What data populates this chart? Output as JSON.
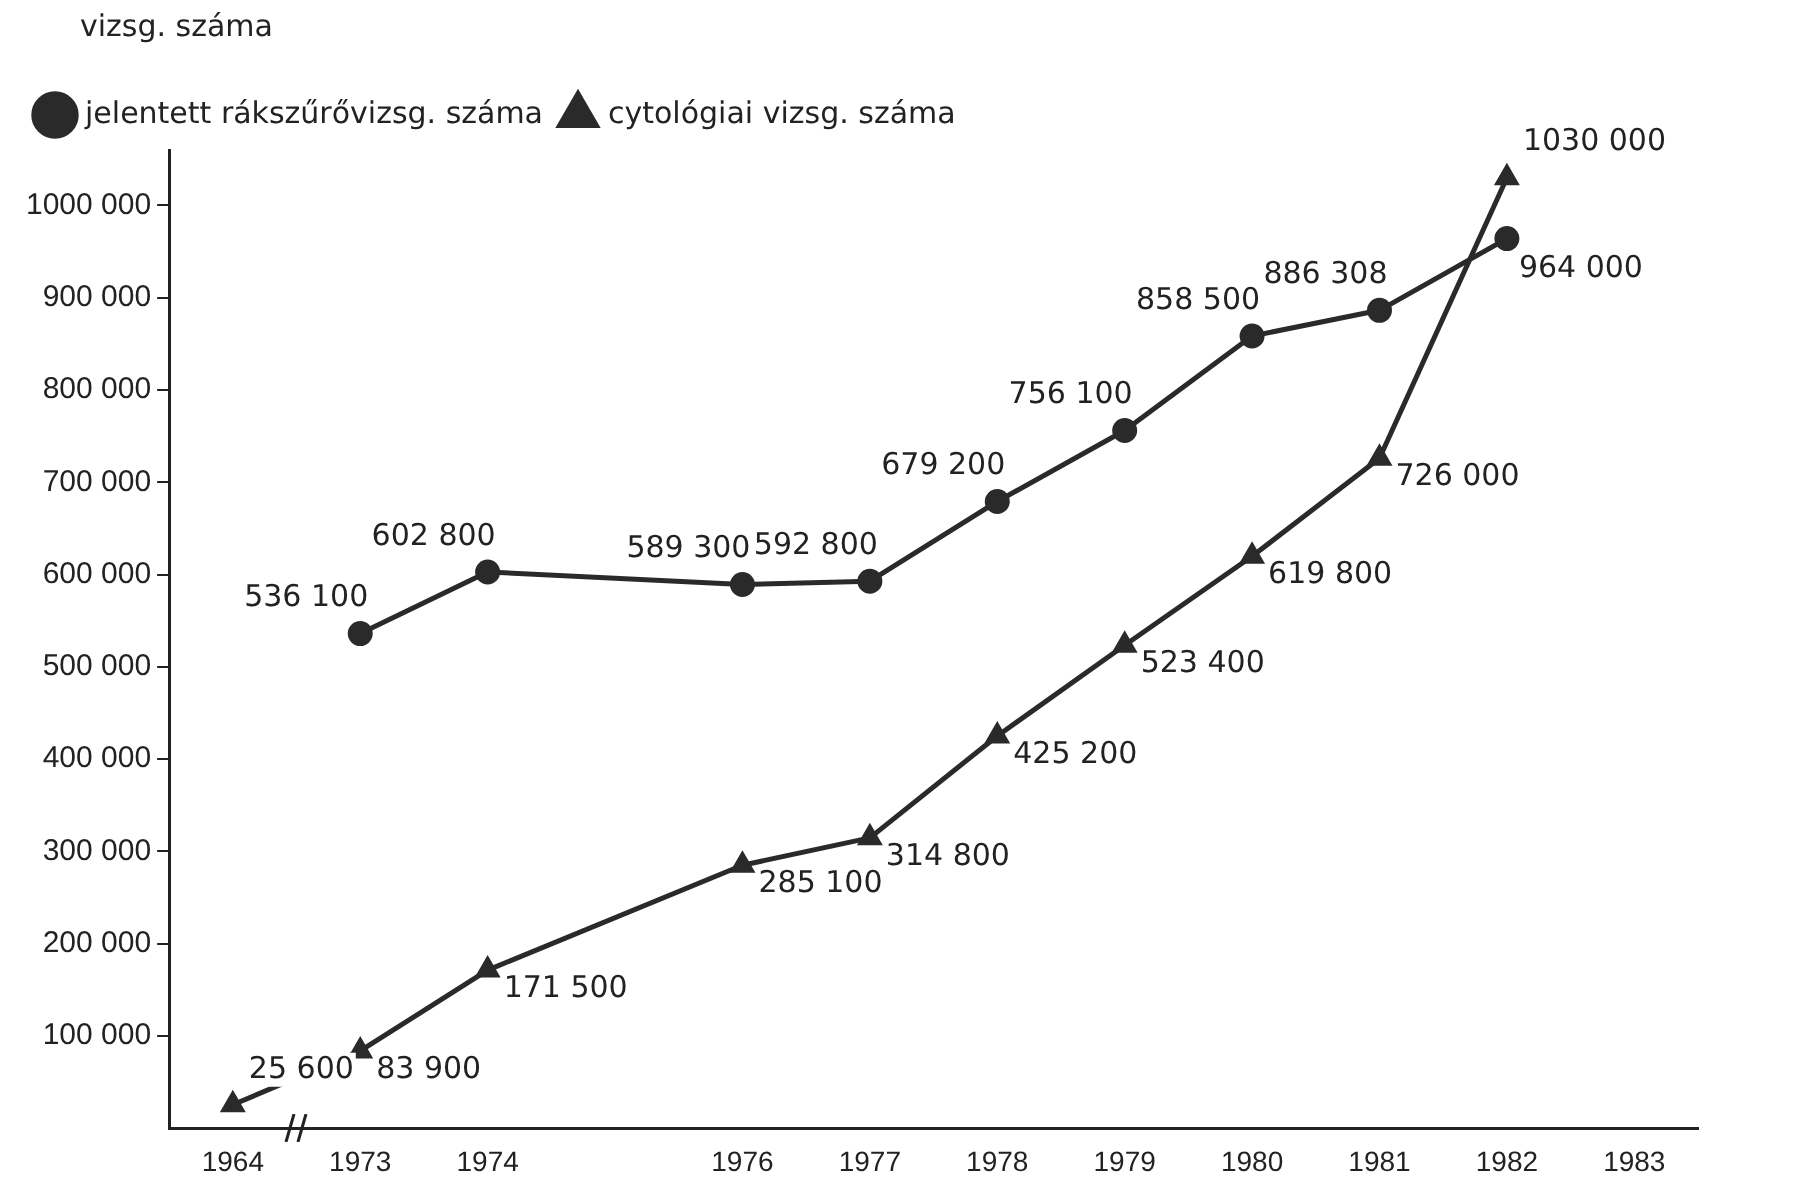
{
  "chart_data": {
    "type": "line",
    "ylabel": "vizsg. száma",
    "categories": [
      "1964",
      "1973",
      "1974",
      null,
      "1976",
      "1977",
      "1978",
      "1979",
      "1980",
      "1981",
      "1982",
      "1983"
    ],
    "series": [
      {
        "name": "jelentett rákszűrővizsg. száma",
        "color": "#2a2a2a",
        "marker": "circle",
        "values": [
          null,
          536100,
          602800,
          null,
          589300,
          592800,
          679200,
          756100,
          858500,
          886308,
          964000,
          null
        ],
        "value_labels": [
          null,
          "536 100",
          "602 800",
          null,
          "589 300",
          "592 800",
          "679 200",
          "756 100",
          "858 500",
          "886 308",
          "964 000",
          null
        ]
      },
      {
        "name": "cytológiai vizsg. száma",
        "color": "#2a2a2a",
        "marker": "triangle",
        "values": [
          25600,
          83900,
          171500,
          null,
          285100,
          314800,
          425200,
          523400,
          619800,
          726000,
          1030000,
          null
        ],
        "value_labels": [
          "25 600",
          "83 900",
          "171 500",
          null,
          "285 100",
          "314 800",
          "425 200",
          "523 400",
          "619 800",
          "726 000",
          "1030 000",
          null
        ]
      }
    ],
    "ylim": [
      0,
      1060000
    ],
    "yticks": [
      {
        "value": 100000,
        "label": "100 000"
      },
      {
        "value": 200000,
        "label": "200 000"
      },
      {
        "value": 300000,
        "label": "300 000"
      },
      {
        "value": 400000,
        "label": "400 000"
      },
      {
        "value": 500000,
        "label": "500 000"
      },
      {
        "value": 600000,
        "label": "600 000"
      },
      {
        "value": 700000,
        "label": "700 000"
      },
      {
        "value": 800000,
        "label": "800 000"
      },
      {
        "value": 900000,
        "label": "900 000"
      },
      {
        "value": 1000000,
        "label": "1000 000"
      }
    ],
    "grid": false,
    "legend": "top left",
    "line_style": "solid"
  }
}
